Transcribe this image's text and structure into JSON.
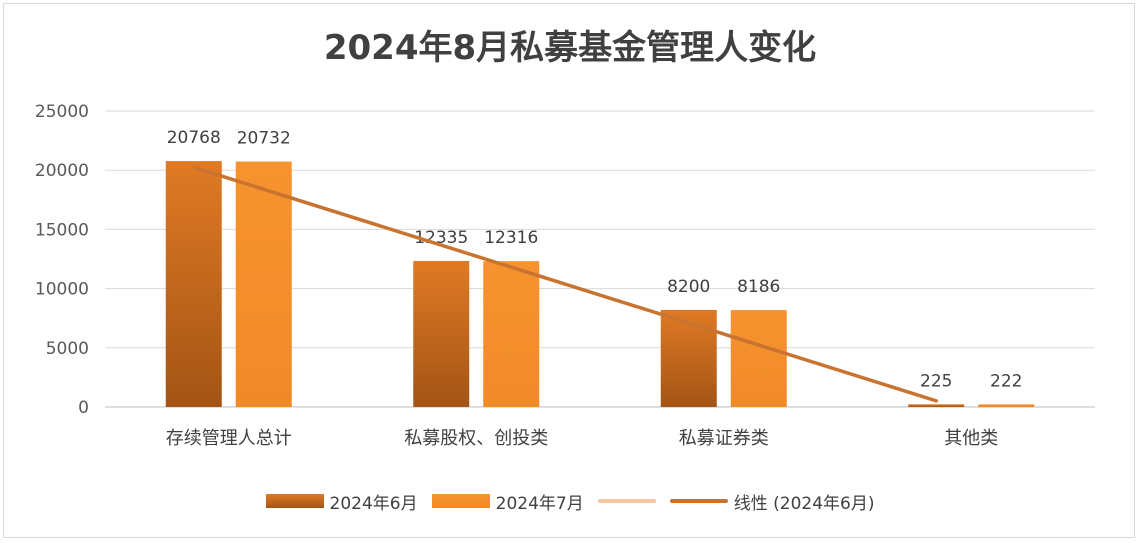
{
  "chart_data": {
    "type": "bar",
    "title": "2024年8月私募基金管理人变化",
    "categories": [
      "存续管理人总计",
      "私募股权、创投类",
      "私募证券类",
      "其他类"
    ],
    "series": [
      {
        "name": "2024年6月",
        "values": [
          20768,
          12335,
          8200,
          225
        ],
        "color_top": "#e07a24",
        "color_bottom": "#a35415"
      },
      {
        "name": "2024年7月",
        "values": [
          20732,
          12316,
          8186,
          222
        ],
        "color_top": "#f7932f",
        "color_bottom": "#f08a28"
      }
    ],
    "legend_extra": [
      {
        "name": "",
        "kind": "line",
        "color": "#f8c6a3"
      },
      {
        "name": "线性 (2024年6月)",
        "kind": "trendline",
        "color": "#c8732f"
      }
    ],
    "trendline": {
      "series": "2024年6月",
      "type": "linear"
    },
    "ylim": [
      0,
      25000
    ],
    "yticks": [
      0,
      5000,
      10000,
      15000,
      20000,
      25000
    ],
    "grid": true,
    "legend_position": "bottom"
  }
}
